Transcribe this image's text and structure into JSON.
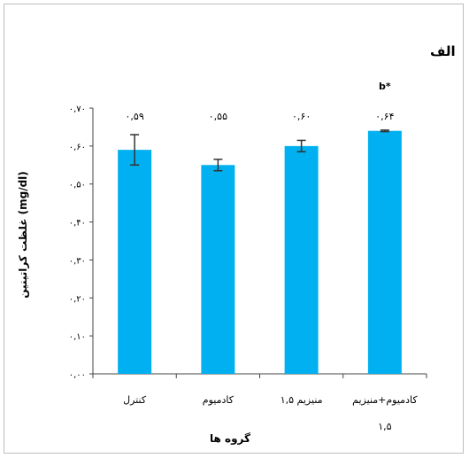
{
  "panel_label": "الف",
  "chart_data": {
    "type": "bar",
    "ylabel": "غلظت کراتینین (mg/dl)",
    "xlabel": "گروه ها",
    "ylim": [
      0,
      0.7
    ],
    "yticks": [
      "۰,۰۰",
      "۰,۱۰",
      "۰,۲۰",
      "۰,۳۰",
      "۰,۴۰",
      "۰,۵۰",
      "۰,۶۰",
      "۰,۷۰"
    ],
    "ytick_values": [
      0,
      0.1,
      0.2,
      0.3,
      0.4,
      0.5,
      0.6,
      0.7
    ],
    "categories": [
      "کنترل",
      "کادمیوم",
      "منیزیم ۱,۵",
      "کادمیوم+منیزیم ۱,۵"
    ],
    "values": [
      0.59,
      0.55,
      0.6,
      0.64
    ],
    "value_labels": [
      "۰,۵۹",
      "۰,۵۵",
      "۰,۶۰",
      "۰,۶۴"
    ],
    "errors": [
      0.04,
      0.015,
      0.015,
      0.002
    ],
    "significance": [
      "",
      "",
      "",
      "b*"
    ],
    "bar_color": "#00b0f0",
    "grid": false
  }
}
